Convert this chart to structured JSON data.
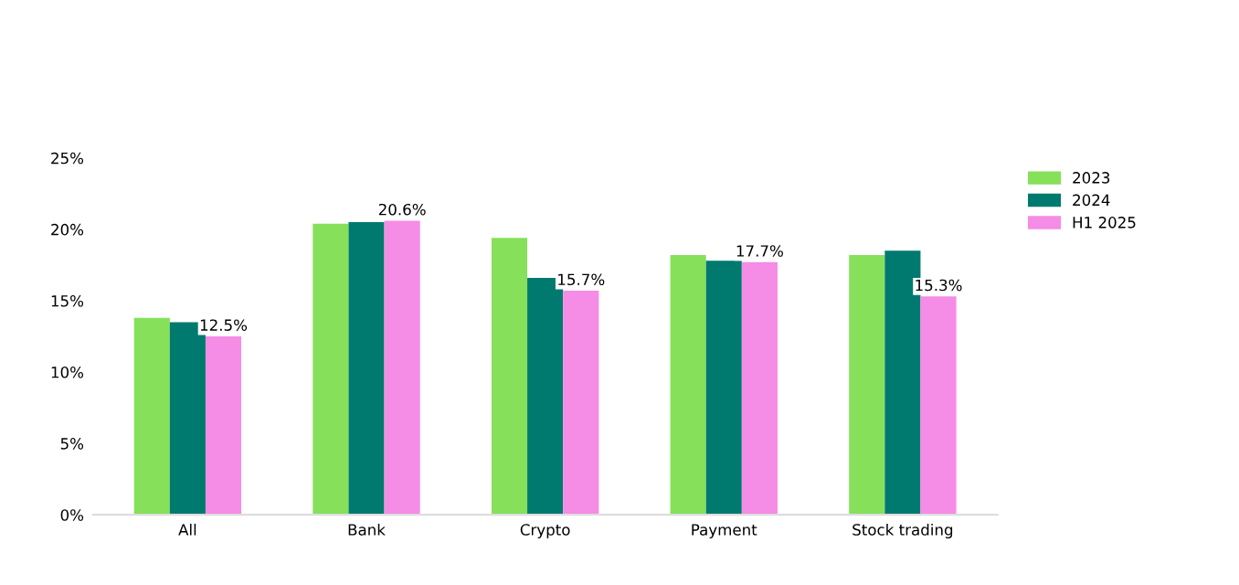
{
  "chart_data": {
    "type": "bar",
    "categories": [
      "All",
      "Bank",
      "Crypto",
      "Payment",
      "Stock trading"
    ],
    "series": [
      {
        "name": "2023",
        "color": "#86e05a",
        "values": [
          13.8,
          20.4,
          19.4,
          18.2,
          18.2
        ]
      },
      {
        "name": "2024",
        "color": "#007a6e",
        "values": [
          13.5,
          20.5,
          16.6,
          17.8,
          18.5
        ]
      },
      {
        "name": "H1 2025",
        "color": "#f58ce6",
        "values": [
          12.5,
          20.6,
          15.7,
          17.7,
          15.3
        ],
        "value_labels": [
          "12.5%",
          "20.6%",
          "15.7%",
          "17.7%",
          "15.3%"
        ]
      }
    ],
    "ylim": [
      0,
      25
    ],
    "yticks": [
      {
        "value": 0,
        "label": "0%"
      },
      {
        "value": 5,
        "label": "5%"
      },
      {
        "value": 10,
        "label": "10%"
      },
      {
        "value": 15,
        "label": "15%"
      },
      {
        "value": 20,
        "label": "20%"
      },
      {
        "value": 25,
        "label": "25%"
      }
    ],
    "legend": "top right"
  }
}
